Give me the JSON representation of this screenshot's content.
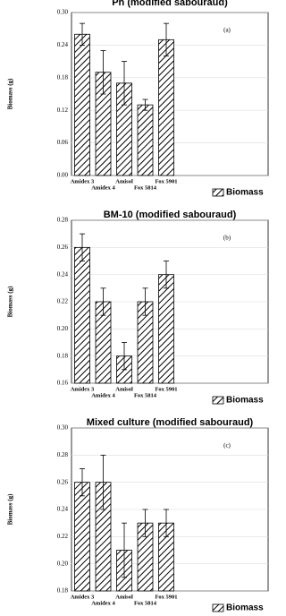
{
  "chart_data": [
    {
      "type": "bar",
      "title": "Ph (modified sabouraud)",
      "annotation": "(a)",
      "y_label": "Biomass (g)",
      "categories": [
        "Amidex 3",
        "Amidex 4",
        "Amisol",
        "Fox 5814",
        "Fox 5901"
      ],
      "series": [
        {
          "name": "Biomass",
          "color": "#000000",
          "values": [
            0.26,
            0.19,
            0.17,
            0.13,
            0.25
          ],
          "errors": [
            0.02,
            0.04,
            0.04,
            0.01,
            0.03
          ]
        }
      ],
      "ylim": [
        0,
        0.3
      ],
      "yticks": [
        {
          "value": 0,
          "label": "0.00"
        },
        0.06,
        0.12,
        0.18,
        0.24,
        {
          "value": 0.3,
          "label": "0.30"
        }
      ]
    },
    {
      "type": "bar",
      "title": "BM-10 (modified sabouraud)",
      "annotation": "(b)",
      "y_label": "Biomass (g)",
      "categories": [
        "Amidex 3",
        "Amidex 4",
        "Amisol",
        "Fox 5814",
        "Fox 5901"
      ],
      "series": [
        {
          "name": "Biomass",
          "color": "#000000",
          "values": [
            0.26,
            0.22,
            0.18,
            0.22,
            0.24
          ],
          "errors": [
            0.01,
            0.01,
            0.01,
            0.01,
            0.01
          ]
        }
      ],
      "ylim": [
        0.16,
        0.28
      ],
      "yticks": [
        0.16,
        0.18,
        {
          "value": 0.2,
          "label": "0.20"
        },
        0.22,
        0.24,
        0.26,
        0.28
      ]
    },
    {
      "type": "bar",
      "title": "Mixed culture (modified sabouraud)",
      "annotation": "(c)",
      "y_label": "Biomass (g)",
      "categories": [
        "Amidex 3",
        "Amidex 4",
        "Amisol",
        "Fox 5814",
        "Fox 5901"
      ],
      "series": [
        {
          "name": "Biomass",
          "color": "#000000",
          "values": [
            0.26,
            0.26,
            0.21,
            0.23,
            0.23
          ],
          "errors": [
            0.01,
            0.02,
            0.02,
            0.01,
            0.01
          ]
        }
      ],
      "ylim": [
        0.18,
        0.3
      ],
      "yticks": [
        0.18,
        {
          "value": 0.2,
          "label": "0.20"
        },
        0.22,
        0.24,
        0.26,
        0.28,
        {
          "value": 0.3,
          "label": "0.30"
        }
      ]
    }
  ]
}
